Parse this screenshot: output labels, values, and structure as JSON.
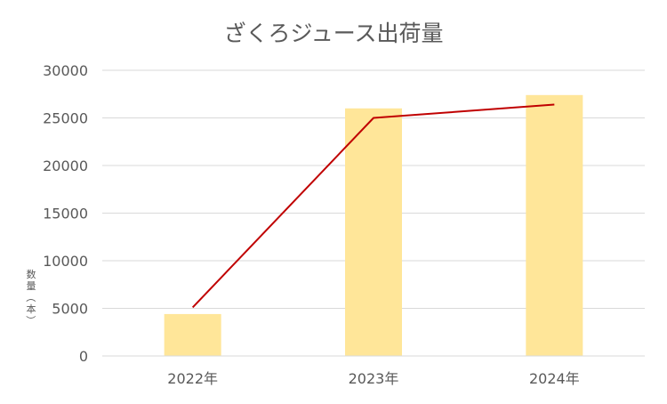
{
  "chart_data": {
    "type": "bar",
    "title": "ざくろジュース出荷量",
    "ylabel": "数量（本）",
    "xlabel": "",
    "categories": [
      "2022年",
      "2023年",
      "2024年"
    ],
    "series": [
      {
        "type": "bar",
        "values": [
          4400,
          26000,
          27400
        ]
      },
      {
        "type": "line",
        "values": [
          5100,
          25000,
          26400
        ]
      }
    ],
    "ylim": [
      0,
      30000
    ],
    "yticks": [
      0,
      5000,
      10000,
      15000,
      20000,
      25000,
      30000
    ],
    "grid": true,
    "colors": {
      "bar": "#FFE699",
      "line": "#C00000",
      "grid": "#D9D9D9",
      "text": "#595959"
    }
  }
}
